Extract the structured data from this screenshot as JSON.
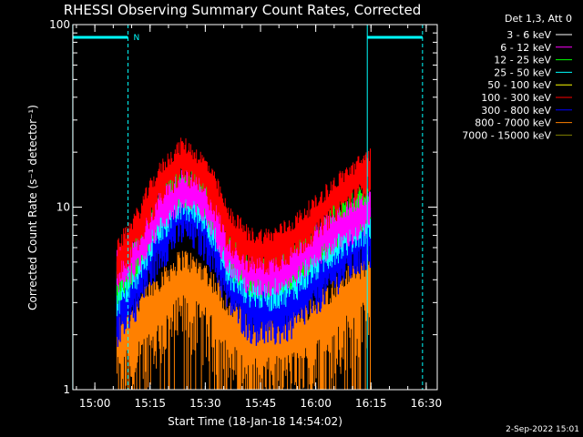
{
  "chart_data": {
    "type": "line",
    "title": "RHESSI Observing Summary Count Rates, Corrected",
    "xlabel": "Start Time (18-Jan-18 14:54:02)",
    "ylabel": "Corrected Count Rate (s⁻¹ detector⁻¹)",
    "yscale": "log",
    "ylim": [
      1,
      100
    ],
    "xlim": [
      "14:54:02",
      "16:33"
    ],
    "x_ticks": [
      "15:00",
      "15:15",
      "15:30",
      "15:45",
      "16:00",
      "16:15",
      "16:30"
    ],
    "y_ticks": [
      "1",
      "10",
      "100"
    ],
    "legend_title": "Det 1,3, Att 0",
    "legend_position": "right",
    "annotation_flag": "N",
    "timestamp": "2-Sep-2022 15:01",
    "night_intervals": [
      [
        "14:54",
        "15:09"
      ],
      [
        "16:14",
        "16:29"
      ]
    ],
    "series": [
      {
        "name": "3 - 6 keV",
        "color": "#ffffff",
        "values": []
      },
      {
        "name": "6 - 12 keV",
        "color": "#ff00ff",
        "x": [
          "15:06",
          "15:12",
          "15:18",
          "15:24",
          "15:30",
          "15:36",
          "15:42",
          "15:48",
          "15:54",
          "16:00",
          "16:06",
          "16:12",
          "16:15"
        ],
        "values": [
          4.5,
          6,
          10,
          13,
          11,
          6,
          4.5,
          4.5,
          5,
          6.5,
          8,
          9,
          10
        ]
      },
      {
        "name": "12 - 25 keV",
        "color": "#00ff00",
        "x": [
          "15:06",
          "15:12",
          "15:18",
          "15:24",
          "15:30",
          "15:36",
          "15:42",
          "15:48",
          "15:54",
          "16:00",
          "16:06",
          "16:12",
          "16:15"
        ],
        "values": [
          4,
          6,
          11,
          14,
          12,
          6,
          4.5,
          4.5,
          5,
          6.5,
          8.5,
          10,
          11
        ]
      },
      {
        "name": "25 - 50 keV",
        "color": "#00ffff",
        "x": [
          "15:06",
          "15:12",
          "15:18",
          "15:24",
          "15:30",
          "15:36",
          "15:42",
          "15:48",
          "15:54",
          "16:00",
          "16:06",
          "16:12",
          "16:15"
        ],
        "values": [
          3.5,
          5,
          9,
          12,
          10,
          5,
          4,
          3.8,
          4.2,
          5.5,
          7,
          8.5,
          9
        ]
      },
      {
        "name": "50 - 100 keV",
        "color": "#ffff00",
        "values": []
      },
      {
        "name": "100 - 300 keV",
        "color": "#ff0000",
        "x": [
          "15:06",
          "15:12",
          "15:18",
          "15:24",
          "15:30",
          "15:36",
          "15:42",
          "15:48",
          "15:54",
          "16:00",
          "16:06",
          "16:12",
          "16:15"
        ],
        "values": [
          5,
          8,
          14,
          19,
          15,
          8,
          6,
          6,
          7,
          9,
          12,
          15,
          17
        ]
      },
      {
        "name": "300 - 800 keV",
        "color": "#0000ff",
        "x": [
          "15:06",
          "15:12",
          "15:18",
          "15:24",
          "15:30",
          "15:36",
          "15:42",
          "15:48",
          "15:54",
          "16:00",
          "16:06",
          "16:12",
          "16:15"
        ],
        "values": [
          3,
          4.5,
          8,
          11,
          9,
          4.5,
          3.2,
          3,
          3.3,
          4.5,
          6,
          7.5,
          8
        ]
      },
      {
        "name": "800 - 7000 keV",
        "color": "#ff8000",
        "x": [
          "15:06",
          "15:12",
          "15:18",
          "15:24",
          "15:30",
          "15:36",
          "15:42",
          "15:48",
          "15:54",
          "16:00",
          "16:06",
          "16:12",
          "16:15"
        ],
        "values": [
          2,
          2.5,
          3.5,
          4.5,
          3.8,
          2.5,
          2,
          2,
          2.2,
          2.5,
          3.2,
          4,
          4.2
        ]
      },
      {
        "name": "7000 - 15000 keV",
        "color": "#808000",
        "values": []
      }
    ]
  }
}
